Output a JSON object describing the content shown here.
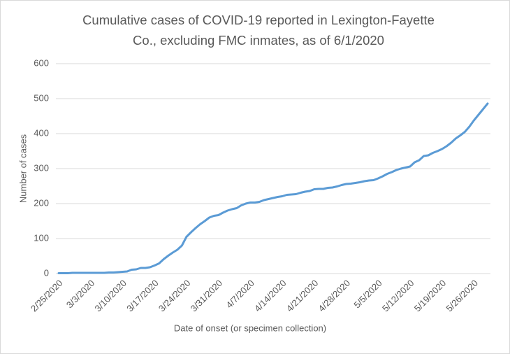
{
  "chart_data": {
    "type": "line",
    "title": "Cumulative cases of COVID-19 reported in Lexington-Fayette Co., excluding FMC inmates, as of 6/1/2020",
    "x_label": "Date of onset (or specimen collection)",
    "y_label": "Number of cases",
    "categories": [
      "2/25/2020",
      null,
      null,
      null,
      null,
      null,
      null,
      "3/3/2020",
      null,
      null,
      null,
      null,
      null,
      null,
      "3/10/2020",
      null,
      null,
      null,
      null,
      null,
      null,
      "3/17/2020",
      null,
      null,
      null,
      null,
      null,
      null,
      "3/24/2020",
      null,
      null,
      null,
      null,
      null,
      null,
      "3/31/2020",
      null,
      null,
      null,
      null,
      null,
      null,
      "4/7/2020",
      null,
      null,
      null,
      null,
      null,
      null,
      "4/14/2020",
      null,
      null,
      null,
      null,
      null,
      null,
      "4/21/2020",
      null,
      null,
      null,
      null,
      null,
      null,
      "4/28/2020",
      null,
      null,
      null,
      null,
      null,
      null,
      "5/5/2020",
      null,
      null,
      null,
      null,
      null,
      null,
      "5/12/2020",
      null,
      null,
      null,
      null,
      null,
      null,
      "5/19/2020",
      null,
      null,
      null,
      null,
      null,
      null,
      "5/26/2020",
      null,
      null,
      null
    ],
    "values": [
      1,
      1,
      1,
      2,
      2,
      2,
      2,
      2,
      2,
      2,
      2,
      3,
      3,
      4,
      5,
      6,
      11,
      12,
      16,
      16,
      18,
      23,
      29,
      41,
      51,
      60,
      68,
      80,
      105,
      118,
      130,
      141,
      150,
      160,
      165,
      167,
      174,
      180,
      184,
      187,
      195,
      200,
      203,
      203,
      205,
      210,
      213,
      216,
      219,
      221,
      225,
      226,
      227,
      231,
      234,
      236,
      241,
      242,
      242,
      245,
      246,
      249,
      253,
      256,
      257,
      259,
      261,
      264,
      266,
      267,
      272,
      278,
      285,
      290,
      296,
      300,
      303,
      306,
      318,
      324,
      336,
      338,
      345,
      350,
      356,
      364,
      374,
      386,
      395,
      405,
      420,
      438,
      454,
      470,
      486
    ],
    "color": "#5b9bd5",
    "ylim": [
      0,
      600
    ],
    "yticks": [
      0,
      100,
      200,
      300,
      400,
      500,
      600
    ],
    "grid": true
  }
}
